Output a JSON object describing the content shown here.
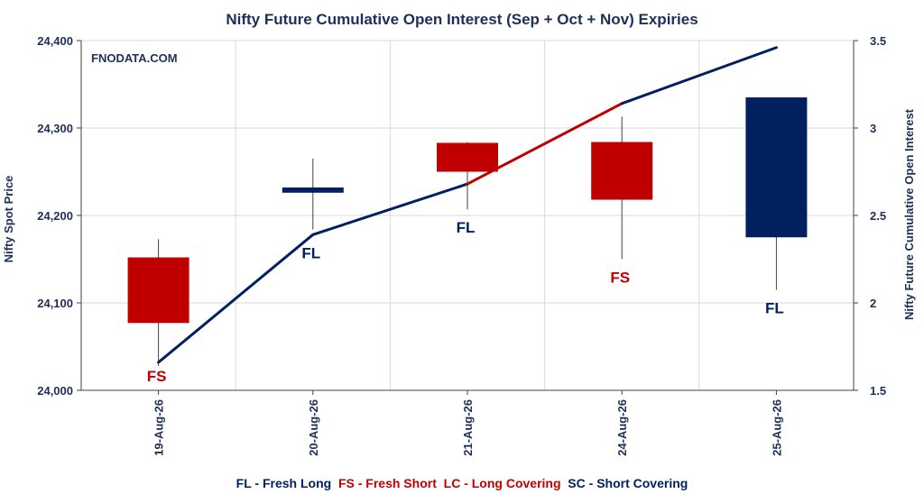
{
  "chart_data": {
    "type": "candlestick+line",
    "title": "Nifty Future Cumulative Open Interest (Sep + Oct + Nov) Expiries",
    "watermark": "FNODATA.COM",
    "categories": [
      "19-Aug-26",
      "20-Aug-26",
      "21-Aug-26",
      "24-Aug-26",
      "25-Aug-26"
    ],
    "ylabel_left": "Nifty Spot Price",
    "ylabel_right": "Nifty Future Cumulative Open Interest",
    "y_left": {
      "min": 24000,
      "max": 24400,
      "ticks": [
        24000,
        24100,
        24200,
        24300,
        24400
      ],
      "tick_labels": [
        "24,000",
        "24,100",
        "24,200",
        "24,300",
        "24,400"
      ]
    },
    "y_right": {
      "min": 1.5,
      "max": 3.5,
      "ticks": [
        1.5,
        2,
        2.5,
        3,
        3.5
      ],
      "tick_labels": [
        "1.5",
        "2",
        "2.5",
        "3",
        "3.5"
      ]
    },
    "candles": [
      {
        "date": "19-Aug-26",
        "open": 24152,
        "high": 24173,
        "low": 24028,
        "close": 24077,
        "color": "#c00000",
        "signal": "FS"
      },
      {
        "date": "20-Aug-26",
        "open": 24226,
        "high": 24265,
        "low": 24184,
        "close": 24232,
        "color": "#002060",
        "signal": "FL"
      },
      {
        "date": "21-Aug-26",
        "open": 24283,
        "high": 24284,
        "low": 24207,
        "close": 24250,
        "color": "#c00000",
        "signal": "FL"
      },
      {
        "date": "24-Aug-26",
        "open": 24284,
        "high": 24313,
        "low": 24150,
        "close": 24218,
        "color": "#c00000",
        "signal": "FS"
      },
      {
        "date": "25-Aug-26",
        "open": 24175,
        "high": 24335,
        "low": 24115,
        "close": 24335,
        "color": "#002060",
        "signal": "FL"
      }
    ],
    "open_interest": {
      "values": [
        1.66,
        2.39,
        2.68,
        3.14,
        3.46
      ],
      "segment_colors": [
        "#002060",
        "#002060",
        "#c00000",
        "#002060"
      ]
    },
    "signal_colors": {
      "FL": "#002060",
      "FS": "#c00000"
    },
    "legend": [
      {
        "text": "FL - Fresh Long",
        "color": "#002060"
      },
      {
        "text": "FS - Fresh Short",
        "color": "#c00000"
      },
      {
        "text": "LC - Long Covering",
        "color": "#c00000"
      },
      {
        "text": "SC - Short Covering",
        "color": "#002060"
      }
    ],
    "grid": true,
    "legend_position": "bottom"
  }
}
